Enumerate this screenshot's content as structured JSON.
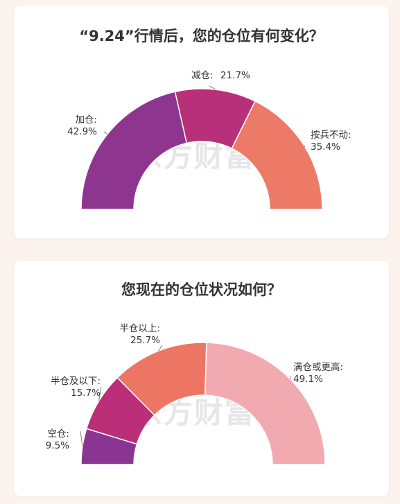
{
  "chart_data": [
    {
      "type": "pie",
      "title": "“9.24”行情后，您的仓位有何变化？",
      "categories": [
        "加仓:",
        "减仓:",
        "按兵不动:"
      ],
      "values": [
        42.9,
        21.7,
        35.4
      ],
      "value_labels": [
        "42.9%",
        "21.7%",
        "35.4%"
      ],
      "colors": [
        "#8e3590",
        "#b9307a",
        "#ed7a66"
      ],
      "shape": "half-donut"
    },
    {
      "type": "pie",
      "title": "您现在的仓位状况如何？",
      "categories": [
        "空仓:",
        "半仓及以下:",
        "半仓以上:",
        "满仓或更高:"
      ],
      "values": [
        9.5,
        15.7,
        25.7,
        49.1
      ],
      "value_labels": [
        "9.5%",
        "15.7%",
        "25.7%",
        "49.1%"
      ],
      "colors": [
        "#8a3592",
        "#bb2f79",
        "#ec7563",
        "#f2aab1"
      ],
      "shape": "half-donut"
    }
  ],
  "watermark": "东方财富"
}
